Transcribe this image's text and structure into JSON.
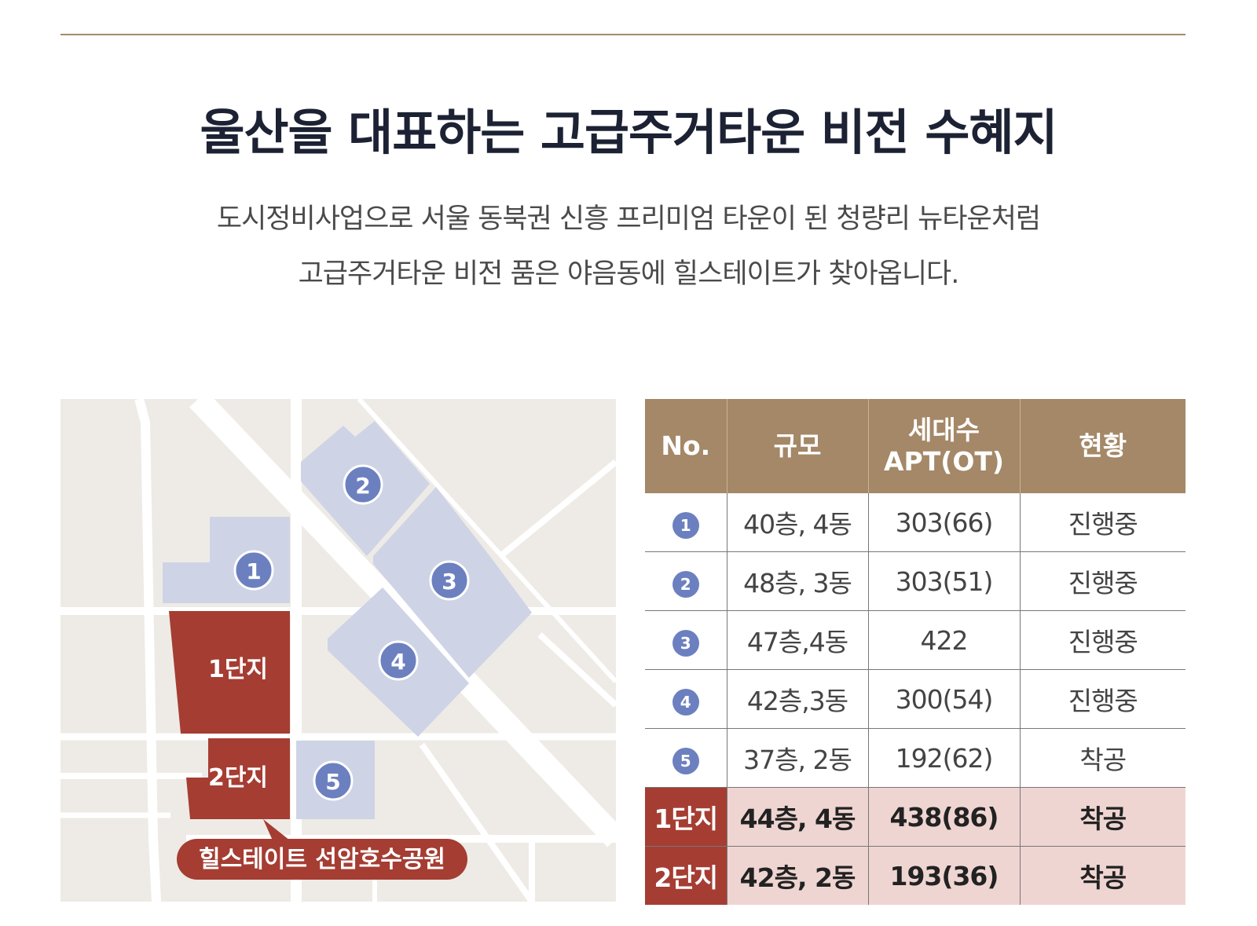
{
  "header": {
    "title": "울산을 대표하는 고급주거타운 비전 수혜지",
    "subtitle_lines": [
      "도시정비사업으로 서울 동북권 신흥 프리미엄 타운이 된 청량리 뉴타운처럼",
      "고급주거타운 비전 품은 야음동에 힐스테이트가 찾아옵니다."
    ]
  },
  "map": {
    "blocks": [
      {
        "label": "1",
        "type": "project"
      },
      {
        "label": "2",
        "type": "project"
      },
      {
        "label": "3",
        "type": "project"
      },
      {
        "label": "4",
        "type": "project"
      },
      {
        "label": "5",
        "type": "project"
      },
      {
        "label": "1단지",
        "type": "hillstate"
      },
      {
        "label": "2단지",
        "type": "hillstate"
      }
    ],
    "callout": "힐스테이트 선암호수공원"
  },
  "table": {
    "headers": [
      "No.",
      "규모",
      "세대수\nAPT(OT)",
      "현황"
    ],
    "header_lines": {
      "households": [
        "세대수",
        "APT(OT)"
      ]
    },
    "rows": [
      {
        "no": "1",
        "scale": "40층, 4동",
        "households": "303(66)",
        "status": "진행중"
      },
      {
        "no": "2",
        "scale": "48층, 3동",
        "households": "303(51)",
        "status": "진행중"
      },
      {
        "no": "3",
        "scale": "47층,4동",
        "households": "422",
        "status": "진행중"
      },
      {
        "no": "4",
        "scale": "42층,3동",
        "households": "300(54)",
        "status": "진행중"
      },
      {
        "no": "5",
        "scale": "37층, 2동",
        "households": "192(62)",
        "status": "착공"
      }
    ],
    "highlight_rows": [
      {
        "no": "1단지",
        "scale": "44층, 4동",
        "households": "438(86)",
        "status": "착공"
      },
      {
        "no": "2단지",
        "scale": "42층, 2동",
        "households": "193(36)",
        "status": "착공"
      }
    ]
  },
  "colors": {
    "map_background": "#eeebe6",
    "road": "#ffffff",
    "project_block": "#ced3e6",
    "marker": "#6c80c0",
    "hillstate": "#a53d33",
    "table_header": "#a48867",
    "highlight_row": "#efd5d2"
  }
}
